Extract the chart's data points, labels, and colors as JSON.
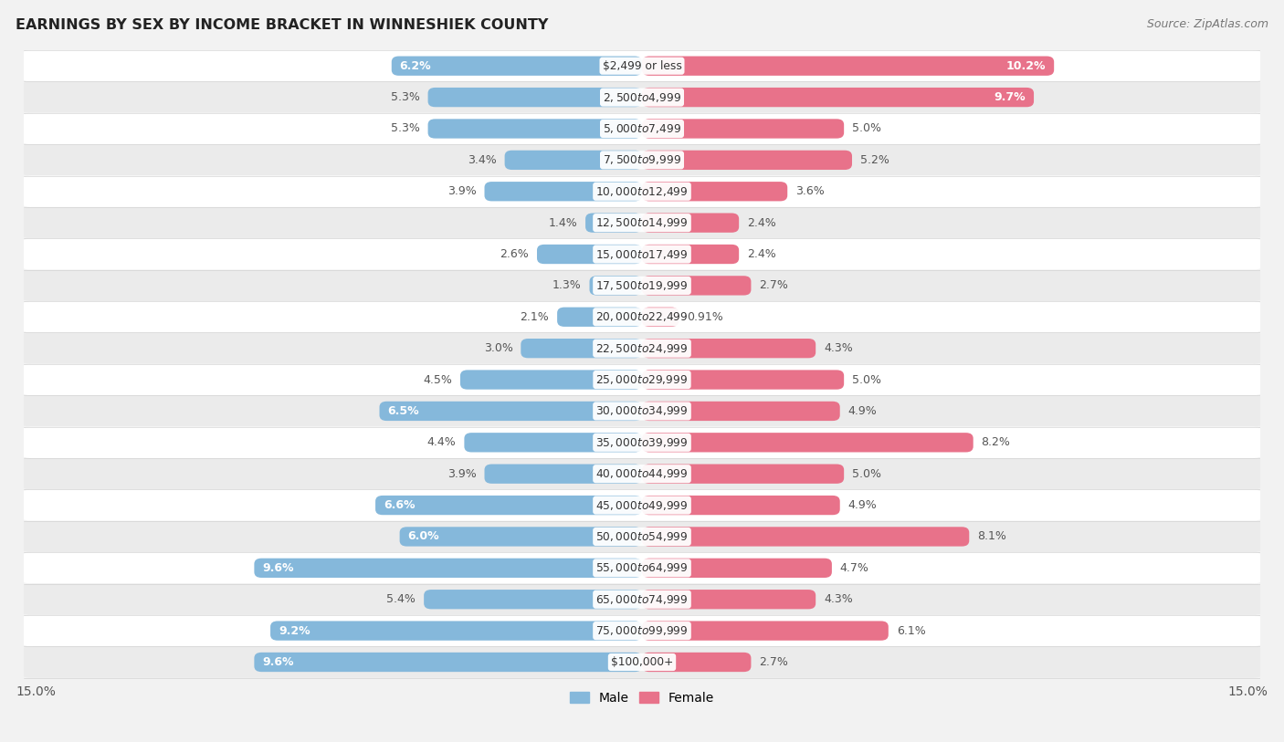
{
  "title": "EARNINGS BY SEX BY INCOME BRACKET IN WINNESHIEK COUNTY",
  "source": "Source: ZipAtlas.com",
  "categories": [
    "$2,499 or less",
    "$2,500 to $4,999",
    "$5,000 to $7,499",
    "$7,500 to $9,999",
    "$10,000 to $12,499",
    "$12,500 to $14,999",
    "$15,000 to $17,499",
    "$17,500 to $19,999",
    "$20,000 to $22,499",
    "$22,500 to $24,999",
    "$25,000 to $29,999",
    "$30,000 to $34,999",
    "$35,000 to $39,999",
    "$40,000 to $44,999",
    "$45,000 to $49,999",
    "$50,000 to $54,999",
    "$55,000 to $64,999",
    "$65,000 to $74,999",
    "$75,000 to $99,999",
    "$100,000+"
  ],
  "male_values": [
    6.2,
    5.3,
    5.3,
    3.4,
    3.9,
    1.4,
    2.6,
    1.3,
    2.1,
    3.0,
    4.5,
    6.5,
    4.4,
    3.9,
    6.6,
    6.0,
    9.6,
    5.4,
    9.2,
    9.6
  ],
  "female_values": [
    10.2,
    9.7,
    5.0,
    5.2,
    3.6,
    2.4,
    2.4,
    2.7,
    0.91,
    4.3,
    5.0,
    4.9,
    8.2,
    5.0,
    4.9,
    8.1,
    4.7,
    4.3,
    6.1,
    2.7
  ],
  "male_color": "#85b8db",
  "female_color": "#e8728a",
  "xlim": 15.0,
  "background_color": "#f2f2f2",
  "row_bg_color": "#ffffff",
  "row_alt_color": "#ebebeb",
  "legend_labels": [
    "Male",
    "Female"
  ],
  "bar_height": 0.62,
  "label_fontsize": 9.0,
  "male_highlight_threshold": 5.5,
  "female_highlight_threshold": 9.5,
  "cat_label_fontsize": 8.8
}
